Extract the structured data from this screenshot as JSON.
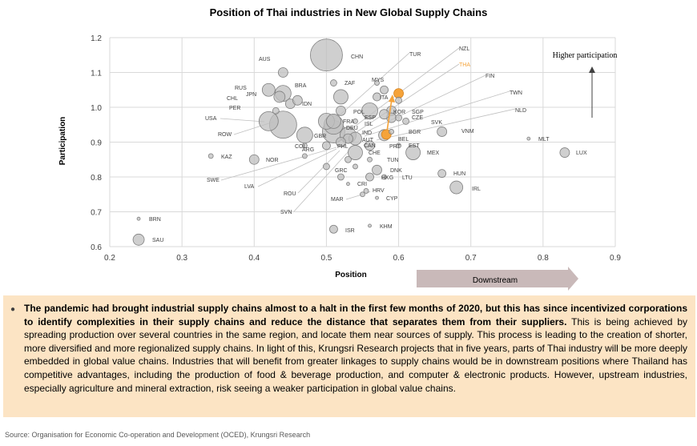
{
  "chart_data": {
    "type": "scatter",
    "title": "Position of Thai industries in New Global Supply Chains",
    "xlabel": "Position",
    "ylabel": "Participation",
    "xlim": [
      0.2,
      0.9
    ],
    "ylim": [
      0.6,
      1.2
    ],
    "xticks": [
      "0.2",
      "0.3",
      "0.4",
      "0.5",
      "0.6",
      "0.7",
      "0.8",
      "0.9"
    ],
    "yticks": [
      "0.6",
      "0.7",
      "0.8",
      "0.9",
      "1.0",
      "1.1",
      "1.2"
    ],
    "grid": true,
    "annotations": {
      "higher_participation": "Higher participation",
      "downstream": "Downstream"
    },
    "highlight_color": "#f5a33a",
    "bubble_color": "#bfbfbf",
    "points": [
      {
        "label": "CHN",
        "x": 0.5,
        "y": 1.15,
        "size": 20
      },
      {
        "label": "TUR",
        "x": 0.57,
        "y": 1.07,
        "size": 3
      },
      {
        "label": "NZL",
        "x": 0.58,
        "y": 1.05,
        "size": 5
      },
      {
        "label": "THA",
        "x": 0.6,
        "y": 1.04,
        "size": 6,
        "highlight": true
      },
      {
        "label": "",
        "x": 0.583,
        "y": 0.922,
        "size": 6,
        "highlight": true
      },
      {
        "label": "FIN",
        "x": 0.6,
        "y": 1.02,
        "size": 4
      },
      {
        "label": "AUS",
        "x": 0.44,
        "y": 1.1,
        "size": 6
      },
      {
        "label": "ZAF",
        "x": 0.51,
        "y": 1.07,
        "size": 4
      },
      {
        "label": "MYS",
        "x": 0.57,
        "y": 1.03,
        "size": 5
      },
      {
        "label": "RUS",
        "x": 0.42,
        "y": 1.05,
        "size": 8
      },
      {
        "label": "BRA",
        "x": 0.44,
        "y": 1.04,
        "size": 10
      },
      {
        "label": "JPN",
        "x": 0.435,
        "y": 1.03,
        "size": 7
      },
      {
        "label": "ITA",
        "x": 0.52,
        "y": 1.03,
        "size": 9
      },
      {
        "label": "CHL",
        "x": 0.45,
        "y": 1.01,
        "size": 6
      },
      {
        "label": "IDN",
        "x": 0.46,
        "y": 1.02,
        "size": 6
      },
      {
        "label": "PER",
        "x": 0.43,
        "y": 0.99,
        "size": 4
      },
      {
        "label": "POL",
        "x": 0.52,
        "y": 0.99,
        "size": 6
      },
      {
        "label": "KOR",
        "x": 0.56,
        "y": 0.99,
        "size": 10
      },
      {
        "label": "SGP",
        "x": 0.59,
        "y": 0.99,
        "size": 6
      },
      {
        "label": "TWN",
        "x": 0.59,
        "y": 0.97,
        "size": 6
      },
      {
        "label": "NLD",
        "x": 0.58,
        "y": 0.98,
        "size": 6
      },
      {
        "label": "CZE",
        "x": 0.6,
        "y": 0.97,
        "size": 4
      },
      {
        "label": "SVK",
        "x": 0.61,
        "y": 0.96,
        "size": 4
      },
      {
        "label": "USA",
        "x": 0.42,
        "y": 0.96,
        "size": 12
      },
      {
        "label": "",
        "x": 0.44,
        "y": 0.95,
        "size": 17
      },
      {
        "label": "ESP",
        "x": 0.5,
        "y": 0.96,
        "size": 10
      },
      {
        "label": "FRA",
        "x": 0.51,
        "y": 0.95,
        "size": 12
      },
      {
        "label": "ISL",
        "x": 0.54,
        "y": 0.96,
        "size": 3
      },
      {
        "label": "GBR",
        "x": 0.51,
        "y": 0.96,
        "size": 9
      },
      {
        "label": "DEU",
        "x": 0.51,
        "y": 0.93,
        "size": 14
      },
      {
        "label": "ROW",
        "x": 0.47,
        "y": 0.92,
        "size": 10
      },
      {
        "label": "IND",
        "x": 0.53,
        "y": 0.92,
        "size": 10
      },
      {
        "label": "AUT",
        "x": 0.53,
        "y": 0.91,
        "size": 6
      },
      {
        "label": "VNM",
        "x": 0.66,
        "y": 0.93,
        "size": 6
      },
      {
        "label": "BGR",
        "x": 0.59,
        "y": 0.93,
        "size": 3
      },
      {
        "label": "BEL",
        "x": 0.58,
        "y": 0.92,
        "size": 7
      },
      {
        "label": "MLT",
        "x": 0.78,
        "y": 0.91,
        "size": 2
      },
      {
        "label": "COL",
        "x": 0.47,
        "y": 0.89,
        "size": 3
      },
      {
        "label": "ARG",
        "x": 0.5,
        "y": 0.89,
        "size": 5
      },
      {
        "label": "PHL",
        "x": 0.52,
        "y": 0.9,
        "size": 6
      },
      {
        "label": "CAN",
        "x": 0.54,
        "y": 0.91,
        "size": 8
      },
      {
        "label": "PRT",
        "x": 0.56,
        "y": 0.89,
        "size": 6
      },
      {
        "label": "EST",
        "x": 0.6,
        "y": 0.89,
        "size": 3
      },
      {
        "label": "CHE",
        "x": 0.54,
        "y": 0.87,
        "size": 9
      },
      {
        "label": "MEX",
        "x": 0.62,
        "y": 0.87,
        "size": 9
      },
      {
        "label": "LUX",
        "x": 0.83,
        "y": 0.87,
        "size": 6
      },
      {
        "label": "KAZ",
        "x": 0.34,
        "y": 0.86,
        "size": 3
      },
      {
        "label": "NOR",
        "x": 0.4,
        "y": 0.85,
        "size": 6
      },
      {
        "label": "TUN",
        "x": 0.56,
        "y": 0.85,
        "size": 3
      },
      {
        "label": "SWE",
        "x": 0.53,
        "y": 0.85,
        "size": 4
      },
      {
        "label": "GRC",
        "x": 0.54,
        "y": 0.83,
        "size": 3
      },
      {
        "label": "DNK",
        "x": 0.57,
        "y": 0.82,
        "size": 6
      },
      {
        "label": "HKG",
        "x": 0.56,
        "y": 0.8,
        "size": 5
      },
      {
        "label": "LTU",
        "x": 0.58,
        "y": 0.8,
        "size": 3
      },
      {
        "label": "HUN",
        "x": 0.66,
        "y": 0.81,
        "size": 5
      },
      {
        "label": "LVA",
        "x": 0.47,
        "y": 0.86,
        "size": 3
      },
      {
        "label": "CRI",
        "x": 0.53,
        "y": 0.78,
        "size": 2
      },
      {
        "label": "IRL",
        "x": 0.68,
        "y": 0.77,
        "size": 8
      },
      {
        "label": "ROU",
        "x": 0.5,
        "y": 0.83,
        "size": 4
      },
      {
        "label": "HRV",
        "x": 0.555,
        "y": 0.76,
        "size": 3
      },
      {
        "label": "MAR",
        "x": 0.55,
        "y": 0.75,
        "size": 3
      },
      {
        "label": "CYP",
        "x": 0.57,
        "y": 0.74,
        "size": 2
      },
      {
        "label": "SVN",
        "x": 0.52,
        "y": 0.8,
        "size": 4
      },
      {
        "label": "BRN",
        "x": 0.24,
        "y": 0.68,
        "size": 2
      },
      {
        "label": "KHM",
        "x": 0.56,
        "y": 0.66,
        "size": 2
      },
      {
        "label": "ISR",
        "x": 0.51,
        "y": 0.65,
        "size": 5
      },
      {
        "label": "SAU",
        "x": 0.24,
        "y": 0.62,
        "size": 7
      }
    ]
  },
  "note": {
    "bold": "The pandemic had brought industrial supply chains almost to a halt in the first few months of 2020, but this has since incentivized corporations to identify complexities in their supply chains and reduce the distance that separates them from their suppliers.",
    "text": " This is being achieved by spreading production over several countries in the same region, and locate them near sources of supply. This process is leading to the creation of shorter, more diversified and more regionalized supply chains. In light of this, Krungsri Research projects that in five years, parts of Thai industry will be more deeply embedded in global value chains. Industries that will benefit from greater linkages to supply chains would be in downstream positions where Thailand has competitive advantages, including the production of food & beverage production, and computer & electronic products. However, upstream industries, especially agriculture and mineral extraction, risk seeing a weaker participation in global value chains."
  },
  "source": "Source: Organisation for Economic Co-operation and Development (OCED), Krungsri Research"
}
